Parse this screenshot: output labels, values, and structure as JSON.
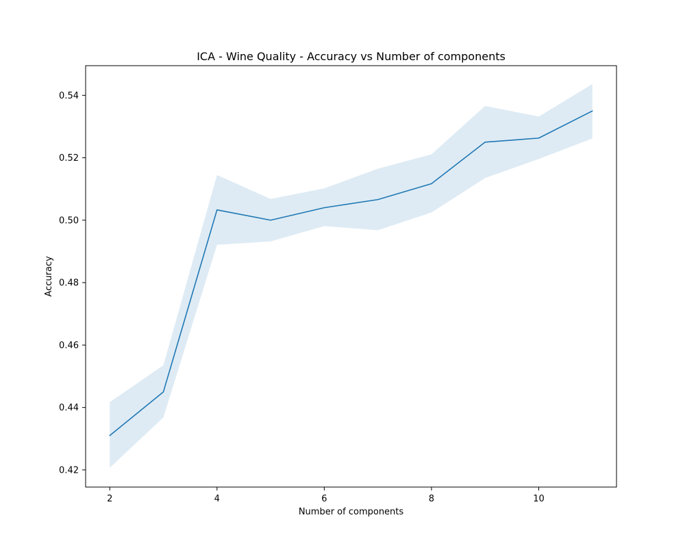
{
  "chart_data": {
    "type": "line",
    "title": "ICA - Wine Quality - Accuracy vs Number of components",
    "xlabel": "Number of components",
    "ylabel": "Accuracy",
    "xlim": [
      1.55,
      11.45
    ],
    "ylim": [
      0.4145,
      0.5495
    ],
    "xticks": [
      2,
      4,
      6,
      8,
      10
    ],
    "xtick_labels": [
      "2",
      "4",
      "6",
      "8",
      "10"
    ],
    "yticks": [
      0.42,
      0.44,
      0.46,
      0.48,
      0.5,
      0.52,
      0.54
    ],
    "ytick_labels": [
      "0.42",
      "0.44",
      "0.46",
      "0.48",
      "0.50",
      "0.52",
      "0.54"
    ],
    "grid": false,
    "legend": "none",
    "series": [
      {
        "x": [
          2,
          3,
          4,
          5,
          6,
          7,
          8,
          9,
          10,
          11
        ],
        "y": [
          0.431,
          0.445,
          0.5033,
          0.5,
          0.504,
          0.5066,
          0.5117,
          0.525,
          0.5263,
          0.535
        ],
        "lower": [
          0.4207,
          0.4368,
          0.4921,
          0.4932,
          0.4981,
          0.4968,
          0.5025,
          0.5135,
          0.5196,
          0.5262
        ],
        "upper": [
          0.4417,
          0.4535,
          0.5145,
          0.5068,
          0.5102,
          0.5165,
          0.5211,
          0.5366,
          0.5332,
          0.5436
        ],
        "color": "#1f77b4",
        "band_color": "#1f77b4"
      }
    ]
  }
}
